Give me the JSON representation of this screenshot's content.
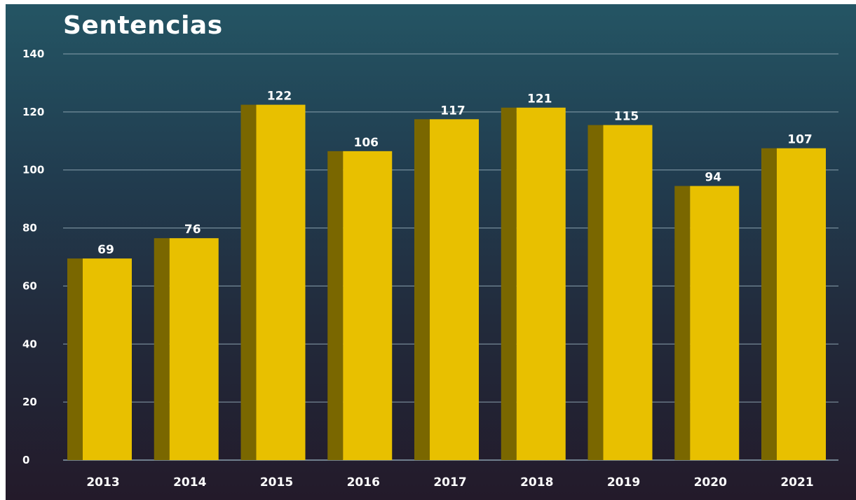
{
  "chart_data": {
    "type": "bar",
    "title": "Sentencias",
    "xlabel": "",
    "ylabel": "",
    "categories": [
      "2013",
      "2014",
      "2015",
      "2016",
      "2017",
      "2018",
      "2019",
      "2020",
      "2021"
    ],
    "values": [
      69,
      76,
      122,
      106,
      117,
      121,
      115,
      94,
      107
    ],
    "ylim": [
      0,
      140
    ],
    "yticks": [
      0,
      20,
      40,
      60,
      80,
      100,
      120,
      140
    ],
    "grid": true,
    "legend": "none",
    "bar_color": "#e8c000",
    "bar_shadow_color": "#7a6700",
    "grid_color": "#8aa0ad",
    "text_color": "#ffffff"
  }
}
